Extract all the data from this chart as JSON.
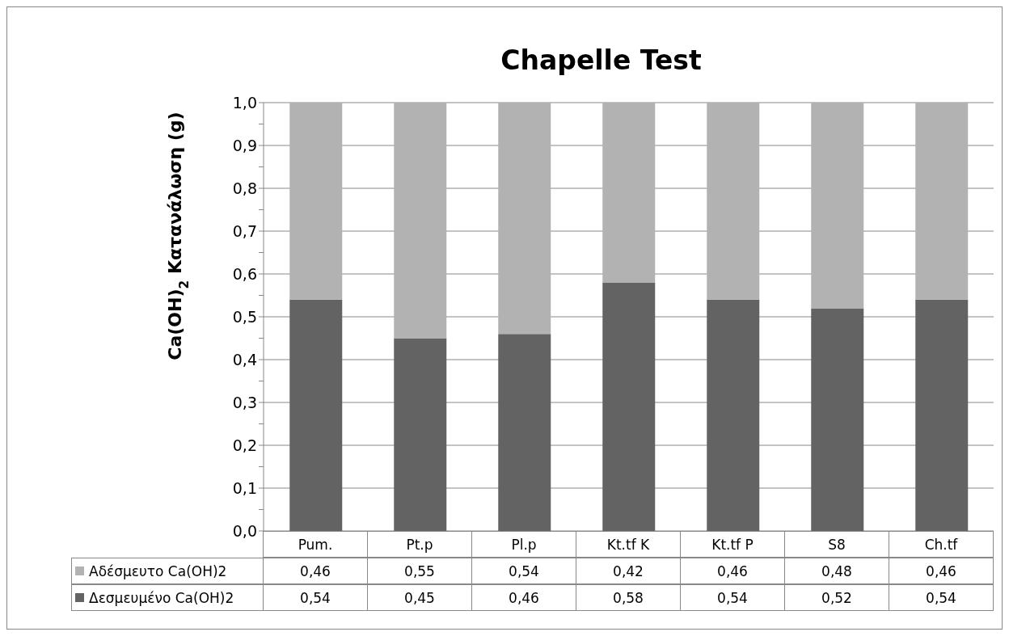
{
  "chart_data": {
    "type": "bar",
    "title": "Chapelle Test",
    "ylabel": "Ca(OH)$_{2}$  Κατανάλωση (g)",
    "categories": [
      "Pum.",
      "Pt.p",
      "Pl.p",
      "Kt.tf K",
      "Kt.tf P",
      "S8",
      "Ch.tf"
    ],
    "stacked": true,
    "series": [
      {
        "name": "Δεσμευμένο Ca(OH)2",
        "color": "#636363",
        "values": [
          0.54,
          0.45,
          0.46,
          0.58,
          0.54,
          0.52,
          0.54
        ],
        "value_labels": [
          "0,54",
          "0,45",
          "0,46",
          "0,58",
          "0,54",
          "0,52",
          "0,54"
        ]
      },
      {
        "name": "Αδέσμευτο Ca(OH)2",
        "color": "#b2b2b2",
        "values": [
          0.46,
          0.55,
          0.54,
          0.42,
          0.46,
          0.48,
          0.46
        ],
        "value_labels": [
          "0,46",
          "0,55",
          "0,54",
          "0,42",
          "0,46",
          "0,48",
          "0,46"
        ]
      }
    ],
    "ylim": [
      0,
      1
    ],
    "yticks": [
      {
        "value": 0,
        "label": "0,0"
      },
      {
        "value": 0.05,
        "label": null
      },
      {
        "value": 0.1,
        "label": "0,1"
      },
      {
        "value": 0.15,
        "label": null
      },
      {
        "value": 0.2,
        "label": "0,2"
      },
      {
        "value": 0.25,
        "label": null
      },
      {
        "value": 0.3,
        "label": "0,3"
      },
      {
        "value": 0.35,
        "label": null
      },
      {
        "value": 0.4,
        "label": "0,4"
      },
      {
        "value": 0.45,
        "label": null
      },
      {
        "value": 0.5,
        "label": "0,5"
      },
      {
        "value": 0.55,
        "label": null
      },
      {
        "value": 0.6,
        "label": "0,6"
      },
      {
        "value": 0.65,
        "label": null
      },
      {
        "value": 0.7,
        "label": "0,7"
      },
      {
        "value": 0.75,
        "label": null
      },
      {
        "value": 0.8,
        "label": "0,8"
      },
      {
        "value": 0.85,
        "label": null
      },
      {
        "value": 0.9,
        "label": "0,9"
      },
      {
        "value": 0.95,
        "label": null
      },
      {
        "value": 1,
        "label": "1,0"
      }
    ],
    "grid": "y",
    "legend": "bottom left"
  }
}
